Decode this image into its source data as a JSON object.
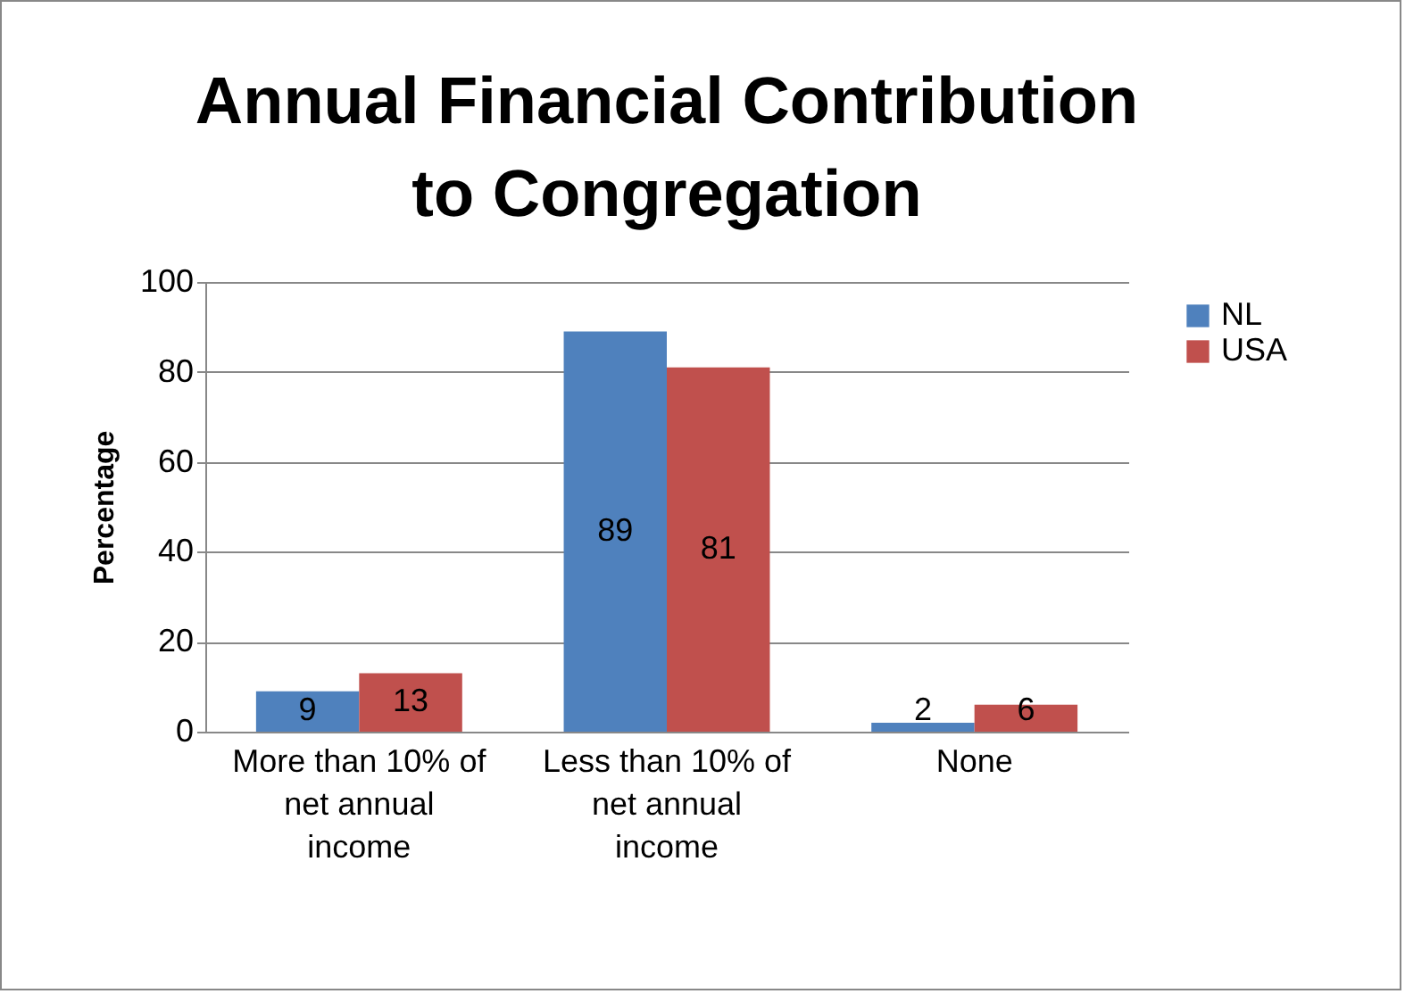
{
  "chart_data": {
    "type": "bar",
    "title": [
      "Annual Financial Contribution",
      "to Congregation"
    ],
    "ylabel": "Percentage",
    "categories": [
      "More than 10% of net annual income",
      "Less than 10% of net annual income",
      "None"
    ],
    "series": [
      {
        "name": "NL",
        "color": "#4f81bd",
        "values": [
          9,
          89,
          2
        ]
      },
      {
        "name": "USA",
        "color": "#c0504d",
        "values": [
          13,
          81,
          6
        ]
      }
    ],
    "ylim": [
      0,
      100
    ],
    "yticks": [
      0,
      20,
      40,
      60,
      80,
      100
    ],
    "grid": "y",
    "legend": "right",
    "data_labels": true
  }
}
